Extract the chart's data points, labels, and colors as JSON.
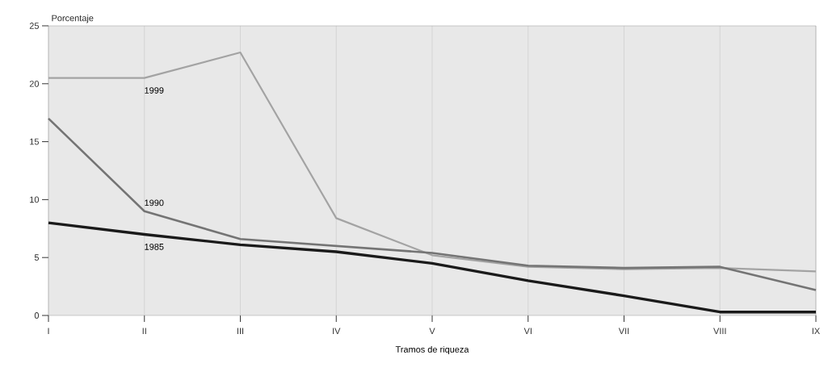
{
  "chart_data": {
    "type": "line",
    "xlabel": "Tramos de riqueza",
    "ylabel": "Porcentaje",
    "categories": [
      "I",
      "II",
      "III",
      "IV",
      "V",
      "VI",
      "VII",
      "VIII",
      "IX"
    ],
    "series": [
      {
        "name": "1999",
        "color": "#a3a3a3",
        "values": [
          20.5,
          20.5,
          22.7,
          8.4,
          5.2,
          4.2,
          4.0,
          4.1,
          3.8
        ]
      },
      {
        "name": "1990",
        "color": "#747474",
        "values": [
          17.0,
          9.0,
          6.6,
          6.0,
          5.4,
          4.3,
          4.1,
          4.2,
          2.2
        ]
      },
      {
        "name": "1985",
        "color": "#1a1a1a",
        "values": [
          8.0,
          7.0,
          6.1,
          5.5,
          4.5,
          3.0,
          1.7,
          0.3,
          0.3
        ]
      }
    ],
    "ylim": [
      0,
      25
    ],
    "yticks": [
      0,
      5,
      10,
      15,
      20,
      25
    ],
    "grid": "x",
    "legend": false,
    "marker": "none",
    "line_style": "solid"
  }
}
